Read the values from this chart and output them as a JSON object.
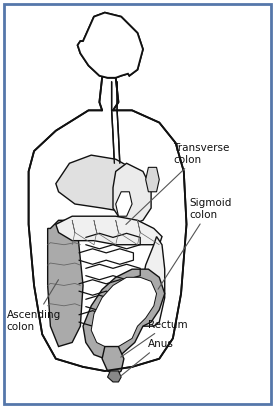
{
  "background_color": "#ffffff",
  "border_color": "#5577aa",
  "border_linewidth": 2.0,
  "labels": {
    "transverse_colon": "Transverse\ncolon",
    "sigmoid_colon": "Sigmoid\ncolon",
    "ascending_colon": "Ascending\ncolon",
    "rectum": "Rectum",
    "anus": "Anus"
  },
  "shaded_color": "#aaaaaa",
  "light_color": "#f0f0f0",
  "outline_color": "#111111",
  "label_fontsize": 7.5,
  "arrow_color": "#555555"
}
